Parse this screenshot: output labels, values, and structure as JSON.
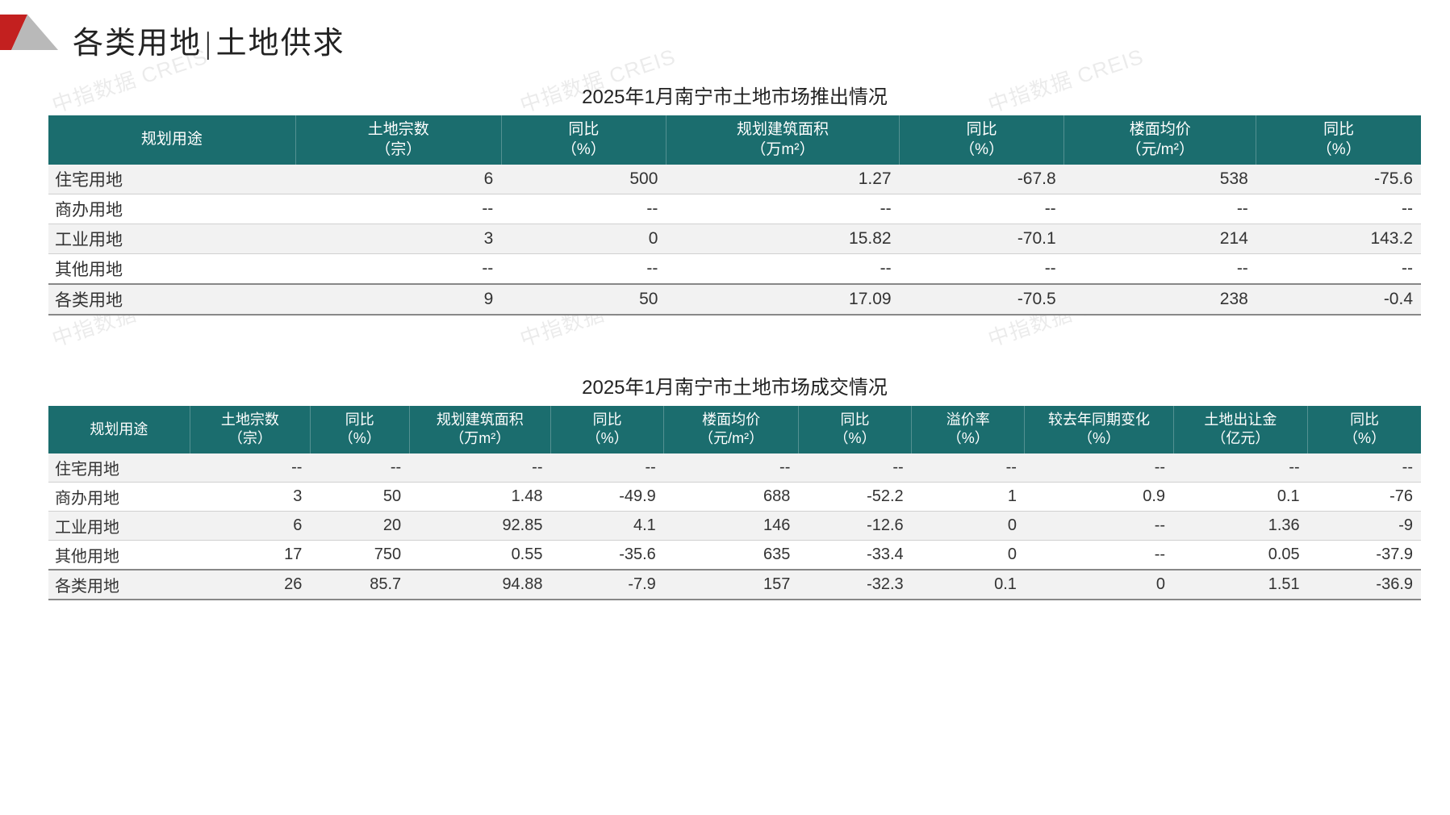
{
  "watermark_text": "中指数据 CREIS",
  "watermark_color": "rgba(0,0,0,0.08)",
  "logo_colors": {
    "red": "#c3201f",
    "grey": "#b9b9b9"
  },
  "header": {
    "title_left": "各类用地",
    "title_right": "土地供求",
    "divider": "|"
  },
  "theme": {
    "header_bg": "#1b6d6e",
    "header_fg": "#ffffff",
    "row_alt_bg": "#f2f2f2",
    "row_bg": "#ffffff",
    "border_color": "#d0d0d0",
    "text_color": "#333333"
  },
  "table1": {
    "title": "2025年1月南宁市土地市场推出情况",
    "columns": [
      "规划用途",
      "土地宗数\n（宗）",
      "同比\n（%）",
      "规划建筑面积\n（万m²）",
      "同比\n（%）",
      "楼面均价\n（元/m²）",
      "同比\n（%）"
    ],
    "rows": [
      {
        "label": "住宅用地",
        "cells": [
          "6",
          "500",
          "1.27",
          "-67.8",
          "538",
          "-75.6"
        ]
      },
      {
        "label": "商办用地",
        "cells": [
          "--",
          "--",
          "--",
          "--",
          "--",
          "--"
        ]
      },
      {
        "label": "工业用地",
        "cells": [
          "3",
          "0",
          "15.82",
          "-70.1",
          "214",
          "143.2"
        ]
      },
      {
        "label": "其他用地",
        "cells": [
          "--",
          "--",
          "--",
          "--",
          "--",
          "--"
        ]
      },
      {
        "label": "各类用地",
        "cells": [
          "9",
          "50",
          "17.09",
          "-70.5",
          "238",
          "-0.4"
        ],
        "total": true
      }
    ]
  },
  "table2": {
    "title": "2025年1月南宁市土地市场成交情况",
    "columns": [
      "规划用途",
      "土地宗数\n（宗）",
      "同比\n（%）",
      "规划建筑面积\n（万m²）",
      "同比\n（%）",
      "楼面均价\n（元/m²）",
      "同比\n（%）",
      "溢价率\n（%）",
      "较去年同期变化\n（%）",
      "土地出让金\n（亿元）",
      "同比\n（%）"
    ],
    "rows": [
      {
        "label": "住宅用地",
        "cells": [
          "--",
          "--",
          "--",
          "--",
          "--",
          "--",
          "--",
          "--",
          "--",
          "--"
        ]
      },
      {
        "label": "商办用地",
        "cells": [
          "3",
          "50",
          "1.48",
          "-49.9",
          "688",
          "-52.2",
          "1",
          "0.9",
          "0.1",
          "-76"
        ]
      },
      {
        "label": "工业用地",
        "cells": [
          "6",
          "20",
          "92.85",
          "4.1",
          "146",
          "-12.6",
          "0",
          "--",
          "1.36",
          "-9"
        ]
      },
      {
        "label": "其他用地",
        "cells": [
          "17",
          "750",
          "0.55",
          "-35.6",
          "635",
          "-33.4",
          "0",
          "--",
          "0.05",
          "-37.9"
        ]
      },
      {
        "label": "各类用地",
        "cells": [
          "26",
          "85.7",
          "94.88",
          "-7.9",
          "157",
          "-32.3",
          "0.1",
          "0",
          "1.51",
          "-36.9"
        ],
        "total": true
      }
    ]
  }
}
